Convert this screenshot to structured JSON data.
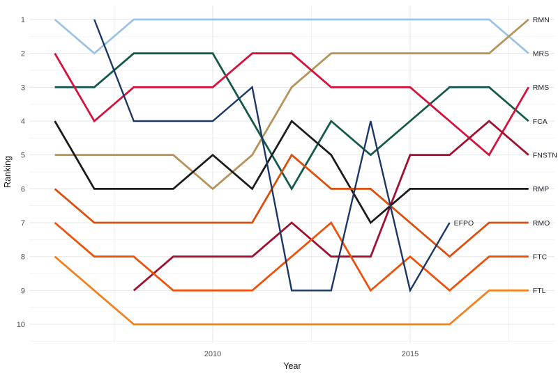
{
  "chart_data": {
    "type": "line",
    "subtype": "bump-chart",
    "title": "",
    "xlabel": "Year",
    "ylabel": "Ranking",
    "x": [
      2006,
      2007,
      2008,
      2009,
      2010,
      2011,
      2012,
      2013,
      2014,
      2015,
      2016,
      2017,
      2018
    ],
    "x_tick_years": [
      2010,
      2015
    ],
    "x_tick_labels": [
      "2010",
      "2015"
    ],
    "y_ticks": [
      1,
      2,
      3,
      4,
      5,
      6,
      7,
      8,
      9,
      10
    ],
    "y_tick_labels": [
      "1",
      "2",
      "3",
      "4",
      "5",
      "6",
      "7",
      "8",
      "9",
      "10"
    ],
    "ylim": [
      1,
      10
    ],
    "x_range": [
      2006,
      2018
    ],
    "grid": "major and minor, light gray, white background",
    "legend_position": "end-of-line labels",
    "minor_x_gridline_years": [
      2007.5,
      2012.5,
      2017.5
    ],
    "series": [
      {
        "name": "RMN",
        "color": "#B5935A",
        "years": [
          2006,
          2007,
          2008,
          2009,
          2010,
          2011,
          2012,
          2013,
          2014,
          2015,
          2016,
          2017,
          2018
        ],
        "ranks": [
          5,
          5,
          5,
          5,
          6,
          5,
          3,
          2,
          2,
          2,
          2,
          2,
          1
        ]
      },
      {
        "name": "MRS",
        "color": "#9CC3E6",
        "years": [
          2006,
          2007,
          2008,
          2009,
          2010,
          2011,
          2012,
          2013,
          2014,
          2015,
          2016,
          2017,
          2018
        ],
        "ranks": [
          1,
          2,
          1,
          1,
          1,
          1,
          1,
          1,
          1,
          1,
          1,
          1,
          2
        ]
      },
      {
        "name": "RMS",
        "color": "#D4123C",
        "years": [
          2006,
          2007,
          2008,
          2009,
          2010,
          2011,
          2012,
          2013,
          2014,
          2015,
          2016,
          2017,
          2018
        ],
        "ranks": [
          2,
          4,
          3,
          3,
          3,
          2,
          2,
          3,
          3,
          3,
          4,
          5,
          3
        ]
      },
      {
        "name": "FCA",
        "color": "#15594C",
        "years": [
          2006,
          2007,
          2008,
          2009,
          2010,
          2011,
          2012,
          2013,
          2014,
          2015,
          2016,
          2017,
          2018
        ],
        "ranks": [
          3,
          3,
          2,
          2,
          2,
          4,
          6,
          4,
          5,
          4,
          3,
          3,
          4
        ]
      },
      {
        "name": "FNSTN",
        "color": "#A0102F",
        "years": [
          2008,
          2009,
          2010,
          2011,
          2012,
          2013,
          2014,
          2015,
          2016,
          2017,
          2018
        ],
        "ranks": [
          9,
          8,
          8,
          8,
          7,
          8,
          8,
          5,
          5,
          4,
          5
        ]
      },
      {
        "name": "RMP",
        "color": "#1C1C1C",
        "years": [
          2006,
          2007,
          2008,
          2009,
          2010,
          2011,
          2012,
          2013,
          2014,
          2015,
          2016,
          2017,
          2018
        ],
        "ranks": [
          4,
          6,
          6,
          6,
          5,
          6,
          4,
          5,
          7,
          6,
          6,
          6,
          6
        ]
      },
      {
        "name": "EFPO",
        "color": "#1C3766",
        "years": [
          2007,
          2008,
          2009,
          2010,
          2011,
          2012,
          2013,
          2014,
          2015,
          2016
        ],
        "ranks": [
          1,
          4,
          4,
          4,
          3,
          9,
          9,
          4,
          9,
          7
        ]
      },
      {
        "name": "RMO",
        "color": "#DB4E0C",
        "years": [
          2006,
          2007,
          2008,
          2009,
          2010,
          2011,
          2012,
          2013,
          2014,
          2015,
          2016,
          2017,
          2018
        ],
        "ranks": [
          6,
          7,
          7,
          7,
          7,
          7,
          5,
          6,
          6,
          7,
          8,
          7,
          7
        ]
      },
      {
        "name": "FTC",
        "color": "#EC520B",
        "years": [
          2006,
          2007,
          2008,
          2009,
          2010,
          2011,
          2012,
          2013,
          2014,
          2015,
          2016,
          2017,
          2018
        ],
        "ranks": [
          7,
          8,
          8,
          9,
          9,
          9,
          8,
          7,
          9,
          8,
          9,
          8,
          8
        ]
      },
      {
        "name": "FTL",
        "color": "#F1821E",
        "years": [
          2006,
          2007,
          2008,
          2009,
          2010,
          2011,
          2012,
          2013,
          2014,
          2015,
          2016,
          2017,
          2018
        ],
        "ranks": [
          8,
          9,
          10,
          10,
          10,
          10,
          10,
          10,
          10,
          10,
          10,
          9,
          9
        ]
      }
    ],
    "colors": {
      "grid_major": "#E5E5E5",
      "grid_minor": "#F2F2F2",
      "tick_text": "#4D4D4D",
      "axis_title_text": "#141414",
      "series_label_text": "#20242E",
      "background": "#FFFFFF"
    }
  }
}
